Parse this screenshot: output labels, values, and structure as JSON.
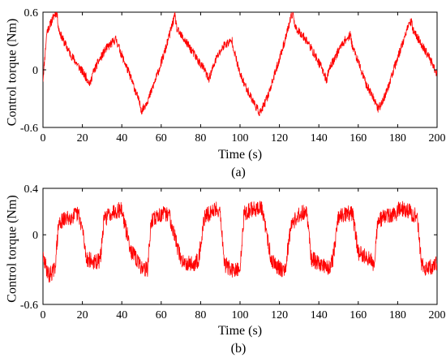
{
  "colors": {
    "trace": "#ff0000",
    "axes": "#000000",
    "background": "#ffffff"
  },
  "chart_data": [
    {
      "type": "line",
      "subplot_label": "(a)",
      "xlabel": "Time (s)",
      "ylabel": "Control torque (Nm)",
      "xlim": [
        0,
        200
      ],
      "ylim": [
        -0.6,
        0.6
      ],
      "x_ticks": [
        0,
        20,
        40,
        60,
        80,
        100,
        120,
        140,
        160,
        180,
        200
      ],
      "x_tick_labels": [
        "0",
        "20",
        "40",
        "60",
        "80",
        "100",
        "120",
        "140",
        "160",
        "180",
        "200"
      ],
      "y_ticks": [
        -0.6,
        0,
        0.6
      ],
      "y_tick_labels": [
        "-0.6",
        "0",
        "0.6"
      ],
      "grid": false,
      "series": [
        {
          "color": "#ff0000",
          "noise_amplitude": 0.045,
          "x": [
            0,
            2,
            6,
            7,
            8,
            10,
            14,
            18,
            22,
            24,
            25,
            28,
            32,
            36,
            37,
            40,
            44,
            48,
            50,
            51,
            54,
            58,
            62,
            66,
            67,
            68,
            70,
            74,
            78,
            82,
            84,
            85,
            88,
            92,
            96,
            97,
            100,
            104,
            108,
            110,
            111,
            114,
            118,
            122,
            126,
            127,
            128,
            130,
            134,
            138,
            142,
            144,
            145,
            148,
            152,
            156,
            157,
            160,
            164,
            168,
            170,
            171,
            174,
            178,
            182,
            186,
            187,
            188,
            190,
            194,
            198,
            200
          ],
          "y": [
            -0.1,
            0.4,
            0.58,
            0.6,
            0.42,
            0.32,
            0.16,
            0.04,
            -0.08,
            -0.15,
            -0.05,
            0.08,
            0.22,
            0.3,
            0.32,
            0.15,
            -0.05,
            -0.28,
            -0.42,
            -0.4,
            -0.28,
            -0.05,
            0.2,
            0.5,
            0.56,
            0.42,
            0.36,
            0.25,
            0.12,
            0.0,
            -0.1,
            -0.05,
            0.12,
            0.26,
            0.3,
            0.2,
            -0.05,
            -0.22,
            -0.38,
            -0.45,
            -0.42,
            -0.28,
            -0.02,
            0.25,
            0.55,
            0.58,
            0.44,
            0.4,
            0.3,
            0.15,
            0.0,
            -0.12,
            0.0,
            0.12,
            0.28,
            0.36,
            0.25,
            0.08,
            -0.15,
            -0.3,
            -0.4,
            -0.38,
            -0.25,
            0.0,
            0.25,
            0.48,
            0.5,
            0.4,
            0.34,
            0.2,
            0.05,
            -0.05
          ]
        }
      ]
    },
    {
      "type": "line",
      "subplot_label": "(b)",
      "xlabel": "Time (s)",
      "ylabel": "Control torque (Nm)",
      "xlim": [
        0,
        200
      ],
      "ylim": [
        -0.6,
        0.4
      ],
      "x_ticks": [
        0,
        20,
        40,
        60,
        80,
        100,
        120,
        140,
        160,
        180,
        200
      ],
      "x_tick_labels": [
        "0",
        "20",
        "40",
        "60",
        "80",
        "100",
        "120",
        "140",
        "160",
        "180",
        "200"
      ],
      "y_ticks": [
        -0.6,
        0,
        0.4
      ],
      "y_tick_labels": [
        "-0.6",
        "0",
        "0.4"
      ],
      "grid": false,
      "series": [
        {
          "color": "#ff0000",
          "noise_amplitude": 0.07,
          "x": [
            0,
            3,
            6,
            8,
            12,
            18,
            20,
            22,
            26,
            29,
            31,
            35,
            40,
            42,
            45,
            50,
            53,
            55,
            59,
            64,
            66,
            70,
            77,
            79,
            82,
            88,
            90,
            92,
            97,
            100,
            102,
            106,
            111,
            113,
            116,
            121,
            123,
            126,
            132,
            134,
            136,
            140,
            145,
            147,
            150,
            155,
            157,
            160,
            166,
            168,
            170,
            174,
            179,
            181,
            184,
            190,
            192,
            195,
            200
          ],
          "y": [
            -0.2,
            -0.35,
            -0.3,
            0.1,
            0.14,
            0.18,
            0.05,
            -0.2,
            -0.24,
            -0.22,
            0.13,
            0.2,
            0.22,
            0.05,
            -0.15,
            -0.28,
            -0.3,
            0.12,
            0.17,
            0.18,
            0.05,
            -0.22,
            -0.26,
            -0.2,
            0.15,
            0.23,
            0.2,
            -0.25,
            -0.32,
            -0.3,
            0.18,
            0.22,
            0.23,
            0.05,
            -0.22,
            -0.3,
            -0.28,
            0.1,
            0.2,
            0.18,
            -0.2,
            -0.25,
            -0.28,
            -0.22,
            0.15,
            0.18,
            0.19,
            -0.15,
            -0.22,
            -0.25,
            0.12,
            0.16,
            0.17,
            0.23,
            0.22,
            0.15,
            -0.25,
            -0.3,
            -0.25
          ]
        }
      ]
    }
  ]
}
